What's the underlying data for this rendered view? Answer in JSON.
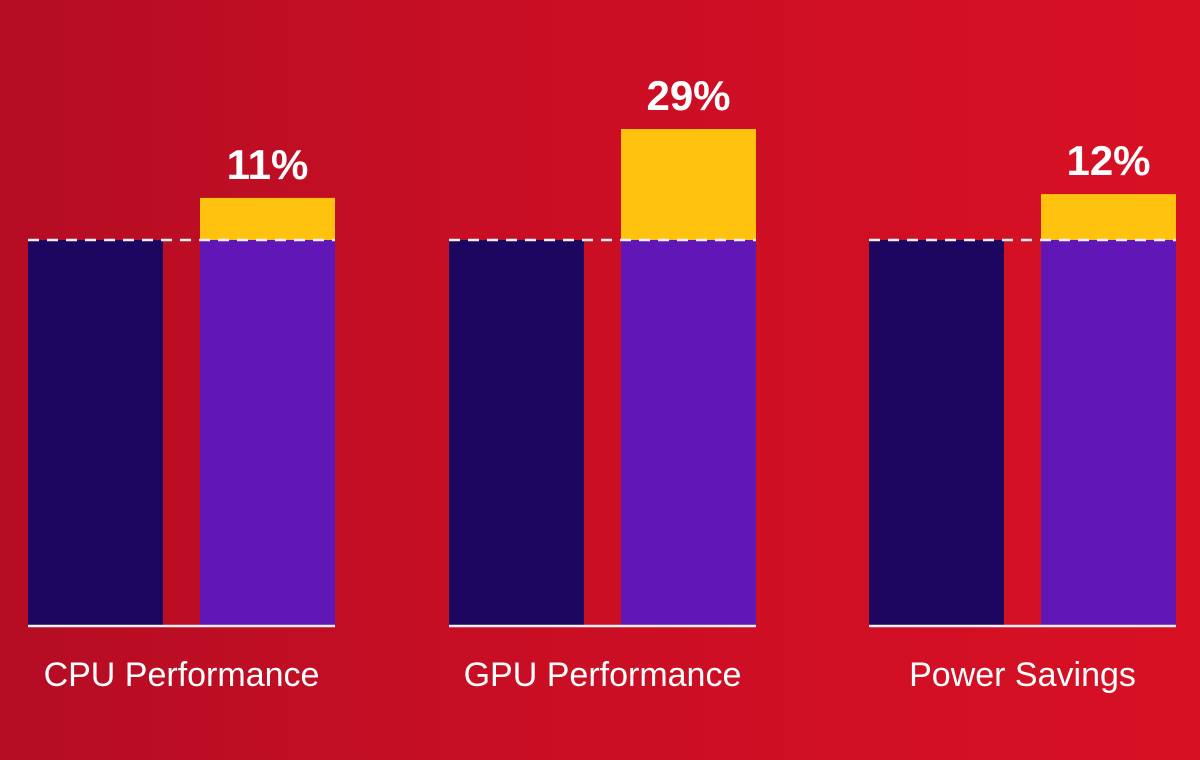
{
  "chart_data": {
    "type": "bar",
    "title": "",
    "categories": [
      "CPU Performance",
      "GPU Performance",
      "Power Savings"
    ],
    "series": [
      {
        "values": [
          0,
          0,
          0
        ]
      },
      {
        "values": [
          11,
          29,
          12
        ]
      }
    ],
    "data_labels": [
      "11%",
      "29%",
      "12%"
    ],
    "baseline_dashed": true,
    "colors": {
      "baseline_bar": "#1c0660",
      "new_bar": "#6117b6",
      "gain": "#ffc20e",
      "axis": "#f2eef2",
      "dash": "#f2eef2",
      "text": "#ffffff"
    },
    "grid": false,
    "legend": "none"
  }
}
